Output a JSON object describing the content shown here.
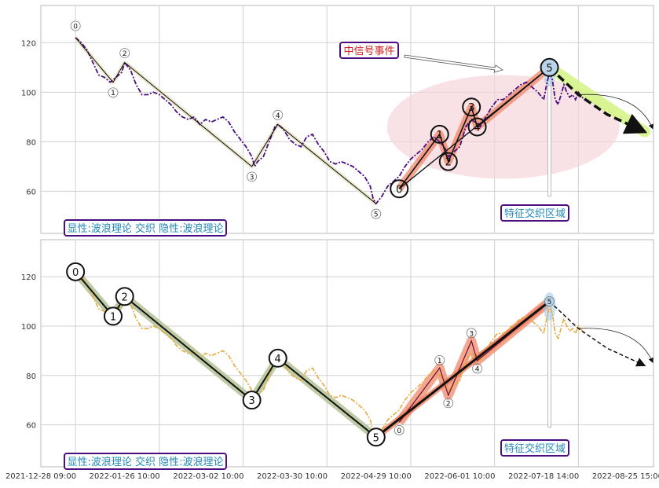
{
  "colors": {
    "grid": "#d0d0d0",
    "panel_border": "#b8b8b8",
    "series_top": "#4b0d80",
    "series_bottom": "#e8aa3a",
    "wave_line": "#111111",
    "wave_halo_top": "#e8e6c4",
    "wave_halo_bottom": "#b7c59a",
    "impulse_halo": "#f08060",
    "ellipse_fill": "#f5d5dc",
    "forecast_halo": "#d7f58a",
    "callout_border": "#4b0d80",
    "callout_text_red": "#cc2222",
    "callout_text_blue": "#2288bb"
  },
  "chart_data": [
    {
      "type": "line",
      "panel": "top",
      "ylim": [
        43,
        135
      ],
      "yticks": [
        60,
        80,
        100,
        120
      ],
      "series": [
        {
          "style": "dash-dot",
          "values": [
            [
              0,
              122
            ],
            [
              2,
              120
            ],
            [
              4,
              117
            ],
            [
              6,
              112
            ],
            [
              8,
              107
            ],
            [
              10,
              106
            ],
            [
              12,
              104
            ],
            [
              14,
              106
            ],
            [
              16,
              108
            ],
            [
              17,
              112
            ],
            [
              19,
              109
            ],
            [
              21,
              103
            ],
            [
              23,
              99
            ],
            [
              25,
              99
            ],
            [
              27,
              100
            ],
            [
              29,
              99
            ],
            [
              31,
              97
            ],
            [
              33,
              95
            ],
            [
              35,
              92
            ],
            [
              37,
              90
            ],
            [
              39,
              89
            ],
            [
              41,
              90
            ],
            [
              43,
              87
            ],
            [
              45,
              89
            ],
            [
              47,
              88
            ],
            [
              49,
              89
            ],
            [
              51,
              90
            ],
            [
              53,
              88
            ],
            [
              55,
              84
            ],
            [
              57,
              81
            ],
            [
              59,
              78
            ],
            [
              61,
              74
            ],
            [
              62,
              70
            ],
            [
              63,
              72
            ],
            [
              65,
              74
            ],
            [
              67,
              80
            ],
            [
              69,
              86
            ],
            [
              70,
              87
            ],
            [
              72,
              85
            ],
            [
              74,
              81
            ],
            [
              76,
              79
            ],
            [
              78,
              78
            ],
            [
              80,
              82
            ],
            [
              82,
              83
            ],
            [
              84,
              79
            ],
            [
              86,
              76
            ],
            [
              88,
              72
            ],
            [
              90,
              71
            ],
            [
              92,
              72
            ],
            [
              94,
              71
            ],
            [
              96,
              70
            ],
            [
              98,
              68
            ],
            [
              100,
              66
            ],
            [
              102,
              62
            ],
            [
              103,
              57
            ],
            [
              104,
              55
            ],
            [
              106,
              58
            ],
            [
              108,
              62
            ],
            [
              110,
              64
            ],
            [
              112,
              66
            ],
            [
              114,
              70
            ],
            [
              116,
              73
            ],
            [
              118,
              75
            ],
            [
              120,
              77
            ],
            [
              122,
              80
            ],
            [
              124,
              82
            ],
            [
              126,
              80
            ],
            [
              128,
              77
            ],
            [
              129,
              74
            ],
            [
              131,
              76
            ],
            [
              133,
              78
            ],
            [
              135,
              86
            ],
            [
              137,
              89
            ],
            [
              138,
              88
            ],
            [
              140,
              86
            ],
            [
              142,
              90
            ],
            [
              144,
              94
            ],
            [
              146,
              97
            ],
            [
              148,
              97
            ],
            [
              150,
              99
            ],
            [
              152,
              101
            ],
            [
              154,
              103
            ],
            [
              156,
              104
            ],
            [
              158,
              102
            ],
            [
              160,
              100
            ],
            [
              162,
              97
            ],
            [
              163,
              103
            ],
            [
              164,
              108
            ],
            [
              165,
              105
            ],
            [
              166,
              97
            ],
            [
              167,
              95
            ],
            [
              168,
              99
            ],
            [
              169,
              103
            ],
            [
              170,
              100
            ],
            [
              171,
              98
            ],
            [
              172,
              99
            ],
            [
              173,
              97
            ],
            [
              174,
              100
            ],
            [
              176,
              97
            ]
          ]
        }
      ],
      "waves": [
        {
          "label": "0",
          "x": 0,
          "y": 122
        },
        {
          "label": "1",
          "x": 13,
          "y": 104
        },
        {
          "label": "2",
          "x": 17,
          "y": 112
        },
        {
          "label": "3",
          "x": 61,
          "y": 70
        },
        {
          "label": "4",
          "x": 70,
          "y": 87
        },
        {
          "label": "5",
          "x": 104,
          "y": 55
        }
      ],
      "impulse": [
        {
          "label": "0",
          "x": 112,
          "y": 61
        },
        {
          "label": "1",
          "x": 126,
          "y": 83
        },
        {
          "label": "2",
          "x": 129,
          "y": 72
        },
        {
          "label": "3",
          "x": 137,
          "y": 94
        },
        {
          "label": "4",
          "x": 139,
          "y": 86
        },
        {
          "label": "5",
          "x": 164,
          "y": 110
        }
      ],
      "forecast_path": [
        [
          164,
          110
        ],
        [
          174,
          99
        ],
        [
          184,
          91
        ],
        [
          197,
          84
        ]
      ],
      "annotations": {
        "signal_event": "中信号事件",
        "feature_zone": "特征交织区域",
        "explicit_implicit": "显性:波浪理论 交织 隐性:波浪理论"
      }
    },
    {
      "type": "line",
      "panel": "bottom",
      "ylim": [
        43,
        135
      ],
      "yticks": [
        60,
        80,
        100,
        120
      ],
      "xticks": [
        "2021-12-28 09:00",
        "2022-01-26 10:00",
        "2022-03-02 10:00",
        "2022-03-30 10:00",
        "2022-04-29 10:00",
        "2022-06-01 10:00",
        "2022-07-18 14:00",
        "2022-08-25 15:00"
      ],
      "series": [
        {
          "style": "dash-dot",
          "values": [
            [
              0,
              122
            ],
            [
              2,
              120
            ],
            [
              4,
              117
            ],
            [
              6,
              112
            ],
            [
              8,
              107
            ],
            [
              10,
              106
            ],
            [
              12,
              104
            ],
            [
              14,
              106
            ],
            [
              16,
              108
            ],
            [
              17,
              112
            ],
            [
              19,
              109
            ],
            [
              21,
              103
            ],
            [
              23,
              99
            ],
            [
              25,
              99
            ],
            [
              27,
              100
            ],
            [
              29,
              99
            ],
            [
              31,
              97
            ],
            [
              33,
              95
            ],
            [
              35,
              92
            ],
            [
              37,
              90
            ],
            [
              39,
              89
            ],
            [
              41,
              90
            ],
            [
              43,
              87
            ],
            [
              45,
              89
            ],
            [
              47,
              88
            ],
            [
              49,
              89
            ],
            [
              51,
              90
            ],
            [
              53,
              88
            ],
            [
              55,
              84
            ],
            [
              57,
              81
            ],
            [
              59,
              78
            ],
            [
              61,
              74
            ],
            [
              62,
              70
            ],
            [
              63,
              72
            ],
            [
              65,
              74
            ],
            [
              67,
              80
            ],
            [
              69,
              86
            ],
            [
              70,
              87
            ],
            [
              72,
              85
            ],
            [
              74,
              81
            ],
            [
              76,
              79
            ],
            [
              78,
              78
            ],
            [
              80,
              82
            ],
            [
              82,
              83
            ],
            [
              84,
              79
            ],
            [
              86,
              76
            ],
            [
              88,
              72
            ],
            [
              90,
              71
            ],
            [
              92,
              72
            ],
            [
              94,
              71
            ],
            [
              96,
              70
            ],
            [
              98,
              68
            ],
            [
              100,
              66
            ],
            [
              102,
              62
            ],
            [
              103,
              57
            ],
            [
              104,
              55
            ],
            [
              106,
              58
            ],
            [
              108,
              62
            ],
            [
              110,
              64
            ],
            [
              112,
              66
            ],
            [
              114,
              70
            ],
            [
              116,
              73
            ],
            [
              118,
              75
            ],
            [
              120,
              77
            ],
            [
              122,
              80
            ],
            [
              124,
              82
            ],
            [
              126,
              80
            ],
            [
              128,
              77
            ],
            [
              129,
              74
            ],
            [
              131,
              76
            ],
            [
              133,
              78
            ],
            [
              135,
              86
            ],
            [
              137,
              89
            ],
            [
              138,
              88
            ],
            [
              140,
              86
            ],
            [
              142,
              90
            ],
            [
              144,
              94
            ],
            [
              146,
              97
            ],
            [
              148,
              97
            ],
            [
              150,
              99
            ],
            [
              152,
              101
            ],
            [
              154,
              103
            ],
            [
              156,
              104
            ],
            [
              158,
              102
            ],
            [
              160,
              100
            ],
            [
              162,
              97
            ],
            [
              163,
              103
            ],
            [
              164,
              108
            ],
            [
              165,
              105
            ],
            [
              166,
              97
            ],
            [
              167,
              95
            ],
            [
              168,
              99
            ],
            [
              169,
              103
            ],
            [
              170,
              100
            ],
            [
              171,
              98
            ],
            [
              172,
              99
            ],
            [
              173,
              97
            ],
            [
              174,
              100
            ],
            [
              176,
              97
            ]
          ]
        }
      ],
      "waves": [
        {
          "label": "0",
          "x": 0,
          "y": 122
        },
        {
          "label": "1",
          "x": 13,
          "y": 104
        },
        {
          "label": "2",
          "x": 17,
          "y": 112
        },
        {
          "label": "3",
          "x": 61,
          "y": 70
        },
        {
          "label": "4",
          "x": 70,
          "y": 87
        },
        {
          "label": "5",
          "x": 104,
          "y": 55
        }
      ],
      "impulse": [
        {
          "label": "0",
          "x": 112,
          "y": 61
        },
        {
          "label": "1",
          "x": 126,
          "y": 83
        },
        {
          "label": "2",
          "x": 129,
          "y": 72
        },
        {
          "label": "3",
          "x": 137,
          "y": 94
        },
        {
          "label": "4",
          "x": 139,
          "y": 86
        },
        {
          "label": "5",
          "x": 164,
          "y": 110
        }
      ],
      "forecast_path": [
        [
          164,
          110
        ],
        [
          174,
          99
        ],
        [
          184,
          91
        ],
        [
          197,
          84
        ]
      ],
      "annotations": {
        "feature_zone": "特征交织区域",
        "explicit_implicit": "显性:波浪理论 交织 隐性:波浪理论"
      }
    }
  ]
}
